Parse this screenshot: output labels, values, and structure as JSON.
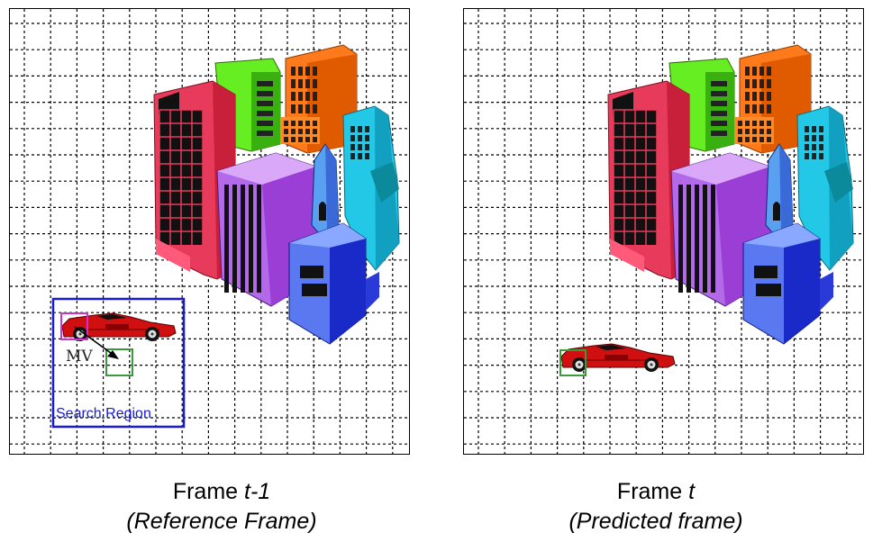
{
  "frames": [
    {
      "id": "reference",
      "caption_line1_prefix": "Frame ",
      "caption_line1_var": "t-1",
      "caption_line2": "(Reference Frame)"
    },
    {
      "id": "predicted",
      "caption_line1_prefix": "Frame ",
      "caption_line1_var": "t",
      "caption_line2": "(Predicted frame)"
    }
  ],
  "labels": {
    "search_region": "Search Region",
    "motion_vector": "MV"
  },
  "colors": {
    "grid": "#000000",
    "search_region_box": "#1a1ad2",
    "current_block": "#cc33cc",
    "matched_block": "#3a9a3a",
    "car_body": "#d01010"
  }
}
